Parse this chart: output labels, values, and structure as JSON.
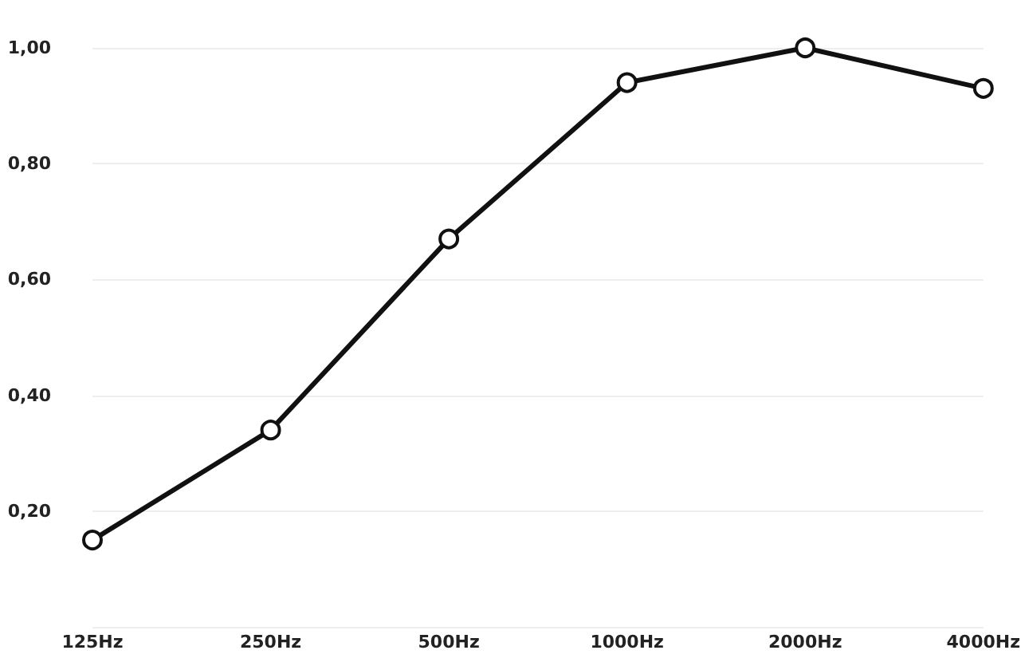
{
  "chart_data": {
    "type": "line",
    "categories": [
      "125Hz",
      "250Hz",
      "500Hz",
      "1000Hz",
      "2000Hz",
      "4000Hz"
    ],
    "series": [
      {
        "color": "#111111",
        "values": [
          0.15,
          0.34,
          0.67,
          0.94,
          1.0,
          0.93
        ]
      }
    ],
    "ylim": [
      0,
      1
    ],
    "yticks": [
      {
        "value": 0,
        "label": null
      },
      {
        "value": 0.2,
        "label": "0,20"
      },
      {
        "value": 0.4,
        "label": "0,40"
      },
      {
        "value": 0.6,
        "label": "0,60"
      },
      {
        "value": 0.8,
        "label": "0,80"
      },
      {
        "value": 1,
        "label": "1,00"
      }
    ],
    "grid": "y",
    "marker": "circle",
    "line_style": "solid"
  }
}
